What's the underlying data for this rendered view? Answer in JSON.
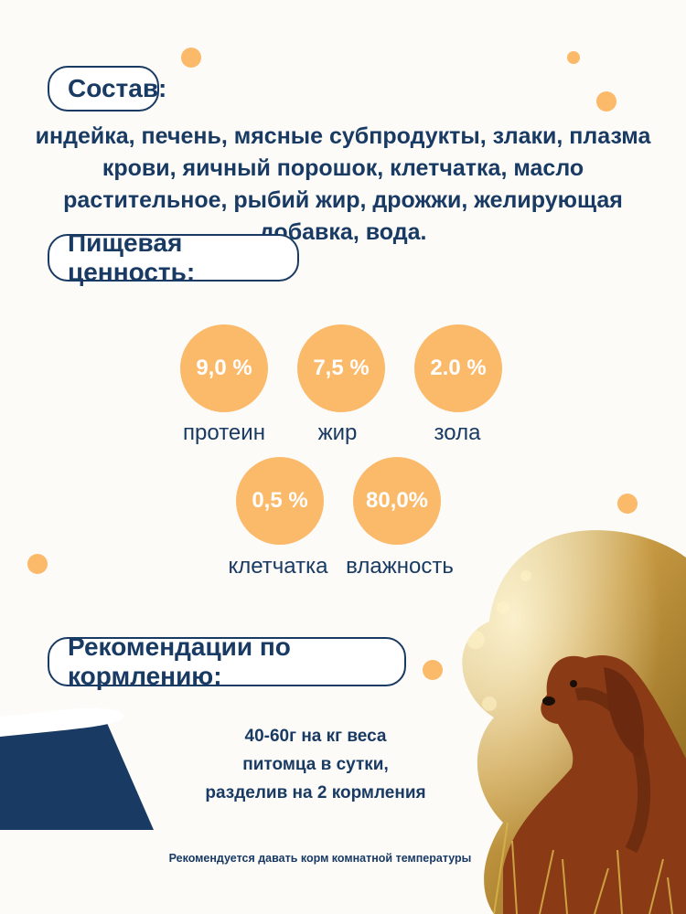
{
  "composition": {
    "title": "Состав:",
    "text": "индейка, печень, мясные субпродукты, злаки, плазма крови, яичный порошок, клетчатка, масло растительное, рыбий жир, дрожжи, желирующая добавка, вода."
  },
  "nutrition": {
    "title": "Пищевая ценность:",
    "items": [
      {
        "value": "9,0 %",
        "label": "протеин"
      },
      {
        "value": "7,5 %",
        "label": "жир"
      },
      {
        "value": "2.0 %",
        "label": "зола"
      },
      {
        "value": "0,5 %",
        "label": "клетчатка"
      },
      {
        "value": "80,0%",
        "label": "влажность"
      }
    ]
  },
  "feeding": {
    "title": "Рекомендации по кормлению:",
    "lines": [
      "40-60г на кг веса",
      "питомца в сутки,",
      "разделив на 2 кормления"
    ],
    "note": "Рекомендуется давать корм комнатной температуры"
  },
  "colors": {
    "navy": "#183a63",
    "orange": "#fbb96a"
  },
  "icons": {
    "bowl": "bowl-icon",
    "photo": "dog-photo"
  }
}
